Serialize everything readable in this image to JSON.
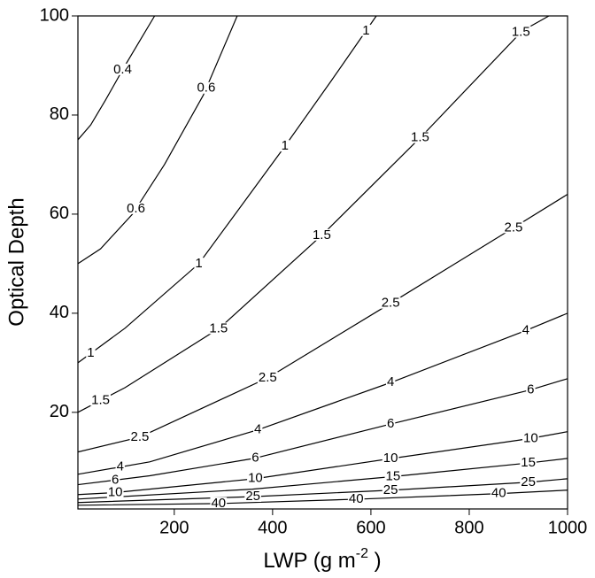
{
  "chart_data": {
    "type": "contour",
    "xlabel": {
      "text": "LWP (g m",
      "superscript": "-2",
      "suffix": " )"
    },
    "ylabel": "Optical Depth",
    "xlim": [
      4,
      1000
    ],
    "ylim": [
      0.5,
      100
    ],
    "xticks": [
      200,
      400,
      600,
      800,
      1000
    ],
    "yticks": [
      20,
      40,
      60,
      80,
      100
    ],
    "color": "#000000",
    "contours": [
      {
        "level": 0.4,
        "x": [
          4,
          30,
          60,
          100,
          130,
          160
        ],
        "y": [
          75,
          78,
          83,
          90,
          95,
          100
        ]
      },
      {
        "level": 0.6,
        "x": [
          4,
          50,
          115,
          180,
          259,
          328
        ],
        "y": [
          50,
          53,
          60,
          70,
          84,
          100
        ]
      },
      {
        "level": 1,
        "x": [
          4,
          100,
          250,
          420,
          520,
          611
        ],
        "y": [
          30,
          37,
          50,
          73,
          87,
          100
        ]
      },
      {
        "level": 1.5,
        "x": [
          4,
          100,
          292,
          503,
          706,
          908,
          962
        ],
        "y": [
          20,
          25,
          37,
          56,
          76,
          97,
          100
        ]
      },
      {
        "level": 2.5,
        "x": [
          4,
          130,
          391,
          640,
          886,
          1000
        ],
        "y": [
          12,
          15,
          27,
          42,
          57,
          64
        ]
      },
      {
        "level": 4,
        "x": [
          4,
          150,
          371,
          640,
          915,
          1000
        ],
        "y": [
          7.5,
          10,
          16.5,
          26,
          36.5,
          40
        ]
      },
      {
        "level": 6,
        "x": [
          4,
          150,
          362,
          643,
          923,
          1000
        ],
        "y": [
          5.4,
          7.2,
          10.7,
          17.7,
          24.5,
          26.8
        ]
      },
      {
        "level": 10,
        "x": [
          4,
          79,
          364,
          643,
          923,
          1000
        ],
        "y": [
          3.4,
          3.8,
          6.6,
          10.7,
          14.7,
          16.1
        ]
      },
      {
        "level": 15,
        "x": [
          4,
          359,
          641,
          923,
          1000
        ],
        "y": [
          2.5,
          4.5,
          7,
          9.8,
          10.7
        ]
      },
      {
        "level": 25,
        "x": [
          4,
          364,
          643,
          923,
          1000
        ],
        "y": [
          1.8,
          3,
          4.3,
          5.9,
          6.6
        ]
      },
      {
        "level": 40,
        "x": [
          4,
          295,
          580,
          863,
          1000
        ],
        "y": [
          1.25,
          1.6,
          2.5,
          3.6,
          4.3
        ]
      }
    ]
  }
}
